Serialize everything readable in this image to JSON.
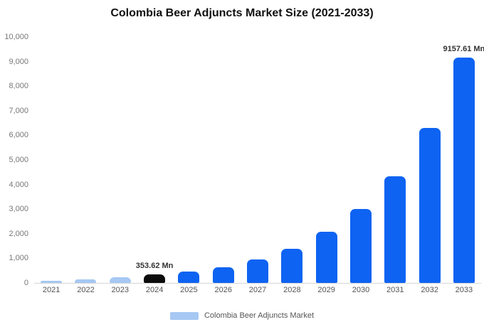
{
  "chart_data": {
    "type": "bar",
    "title": "Colombia Beer Adjuncts Market Size (2021-2033)",
    "categories": [
      "2021",
      "2022",
      "2023",
      "2024",
      "2025",
      "2026",
      "2027",
      "2028",
      "2029",
      "2030",
      "2031",
      "2032",
      "2033"
    ],
    "values": [
      100,
      140,
      220,
      353.62,
      450,
      650,
      950,
      1400,
      2080,
      3000,
      4330,
      6300,
      9157.61
    ],
    "colors": [
      "#a6c8f3",
      "#a6c8f3",
      "#a6c8f3",
      "#0b0b0b",
      "#0e63f2",
      "#0e63f2",
      "#0e63f2",
      "#0e63f2",
      "#0e63f2",
      "#0e63f2",
      "#0e63f2",
      "#0e63f2",
      "#0e63f2"
    ],
    "annotations": [
      {
        "index": 3,
        "text": "353.62 Mn"
      },
      {
        "index": 12,
        "text": "9157.61 Mn"
      }
    ],
    "xlabel": "",
    "ylabel": "",
    "ylim": [
      0,
      10000
    ],
    "ytick_step": 1000,
    "ytick_labels": [
      "0",
      "1,000",
      "2,000",
      "3,000",
      "4,000",
      "5,000",
      "6,000",
      "7,000",
      "8,000",
      "9,000",
      "10,000"
    ],
    "grid": false,
    "legend_position": "bottom"
  },
  "legend": {
    "label": "Colombia Beer Adjuncts Market",
    "color": "#a6c8f3"
  }
}
